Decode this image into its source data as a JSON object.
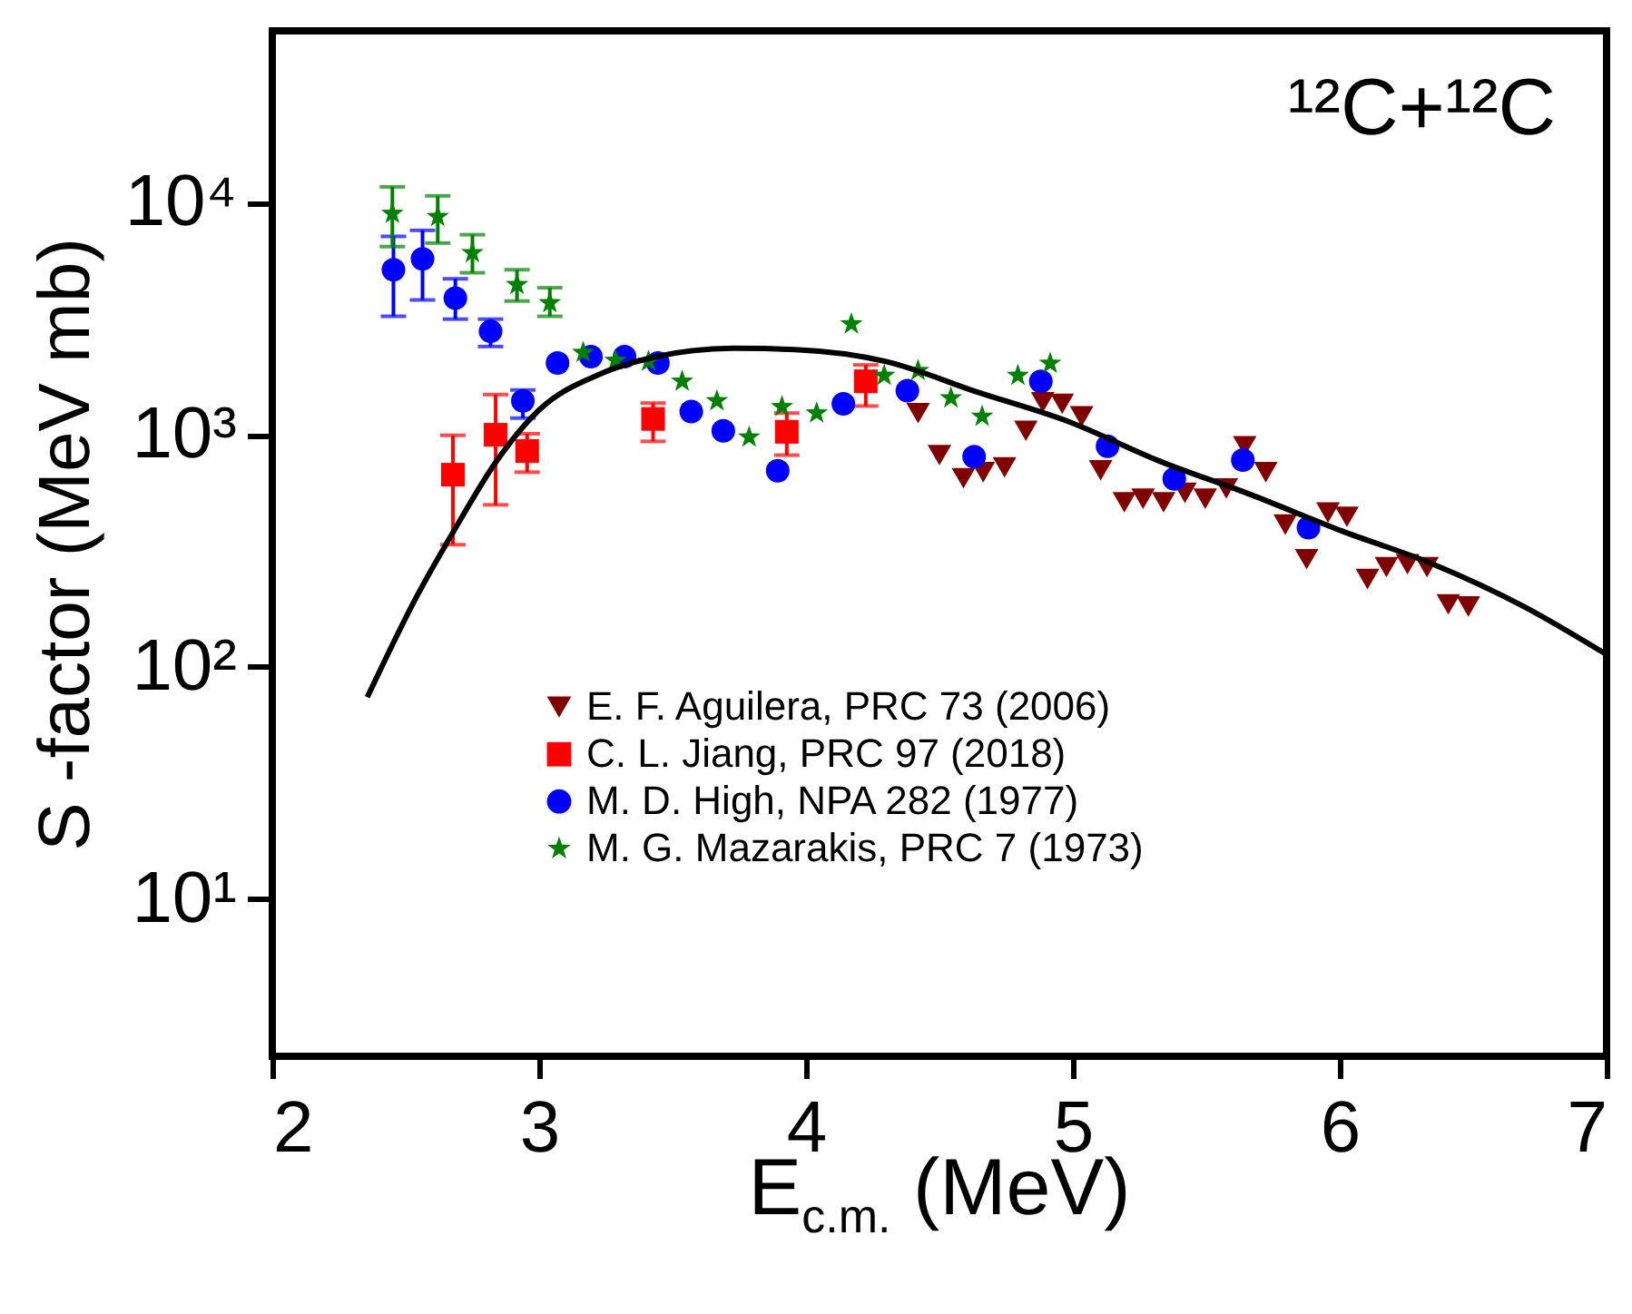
{
  "chart_data": {
    "type": "scatter",
    "xlabel": "E$_{c.m.}$ (MeV)",
    "ylabel": "S -factor (MeV mb)",
    "annotations": [
      "¹²C+¹²C"
    ],
    "log": "y",
    "xlim": [
      2,
      7
    ],
    "xticks": [
      2,
      3,
      4,
      5,
      6,
      7
    ],
    "ylim": [
      2.1,
      55000
    ],
    "yticks": [
      {
        "value": 10,
        "label": "10¹"
      },
      {
        "value": 100,
        "label": "10²"
      },
      {
        "value": 1000,
        "label": "10³"
      },
      {
        "value": 10000,
        "label": "10⁴"
      }
    ],
    "grid": false,
    "legend": "bottom",
    "series": [
      {
        "name": "E. F. Aguilera, PRC 73 (2006)",
        "color": "#800000",
        "marker": "triangle-down",
        "x": [
          4.42,
          4.5,
          4.59,
          4.664,
          4.744,
          4.824,
          4.887,
          4.96,
          5.033,
          5.104,
          5.193,
          5.263,
          5.34,
          5.42,
          5.496,
          5.575,
          5.644,
          5.723,
          5.796,
          5.876,
          5.956,
          6.027,
          6.104,
          6.175,
          6.254,
          6.327,
          6.407,
          6.482
        ],
        "values": [
          1240,
          817,
          650,
          690,
          724,
          1040,
          1380,
          1360,
          1200,
          703,
          512,
          530,
          512,
          562,
          530,
          587,
          893,
          690,
          410,
          291,
          462,
          443,
          239,
          269,
          277,
          269,
          186,
          182
        ]
      },
      {
        "name": "C. L. Jiang, PRC 97 (2018)",
        "color": "#ff0000",
        "marker": "square",
        "x": [
          2.677,
          2.837,
          2.955,
          3.427,
          3.928,
          4.224
        ],
        "values": [
          673,
          1000,
          851,
          1170,
          1030,
          1700
        ],
        "errors": [
          [
            336,
            995
          ],
          [
            499,
            1490
          ],
          [
            690,
            1010
          ],
          [
            937,
            1370
          ],
          [
            817,
            1240
          ],
          [
            1330,
            2000
          ]
        ]
      },
      {
        "name": "M. D. High, NPA 282 (1977)",
        "color": "#0000ff",
        "marker": "circle",
        "x": [
          2.454,
          2.563,
          2.686,
          2.818,
          2.939,
          3.069,
          3.194,
          3.32,
          3.445,
          3.57,
          3.69,
          3.894,
          4.14,
          4.38,
          4.63,
          4.88,
          5.13,
          5.38,
          5.637,
          5.883
        ],
        "values": [
          5140,
          5730,
          3880,
          2790,
          1400,
          2040,
          2170,
          2170,
          2040,
          1260,
          1040,
          700,
          1360,
          1550,
          805,
          1700,
          893,
          646,
          778,
          398
        ],
        "errors": [
          [
            3240,
            7160
          ],
          [
            3810,
            7600
          ],
          [
            3150,
            4700
          ],
          [
            2400,
            3150
          ],
          [
            1180,
            1560
          ],
          null,
          null,
          null,
          null,
          null,
          null,
          null,
          null,
          null,
          null,
          null,
          null,
          null,
          null,
          null
        ]
      },
      {
        "name": "M. G. Mazarakis, PRC 7 (1973)",
        "color": "#008000",
        "marker": "star",
        "x": [
          2.45,
          2.62,
          2.75,
          2.917,
          3.04,
          3.165,
          3.286,
          3.41,
          3.536,
          3.666,
          3.787,
          3.91,
          4.04,
          4.17,
          4.293,
          4.42,
          4.543,
          4.66,
          4.794,
          4.915
        ],
        "values": [
          8980,
          8700,
          6080,
          4430,
          3700,
          2260,
          2090,
          2070,
          1700,
          1400,
          977,
          1320,
          1240,
          3000,
          1800,
          1890,
          1440,
          1200,
          1800,
          2030
        ],
        "errors": [
          [
            6470,
            11700
          ],
          [
            6700,
            10700
          ],
          [
            4990,
            7280
          ],
          [
            3770,
            5140
          ],
          [
            3240,
            4300
          ],
          null,
          null,
          null,
          null,
          null,
          null,
          null,
          null,
          null,
          null,
          null,
          null,
          null,
          null,
          null
        ]
      },
      {
        "type": "line",
        "color": "#000000",
        "x": [
          2.356,
          2.545,
          2.68,
          2.84,
          3.0,
          3.23,
          3.457,
          3.73,
          3.958,
          4.3,
          4.64,
          4.983,
          5.325,
          5.667,
          6.008,
          6.35,
          6.69,
          7.0
        ],
        "values": [
          74,
          205,
          385,
          770,
          1280,
          1830,
          2190,
          2360,
          2330,
          2070,
          1530,
          1140,
          770,
          552,
          385,
          277,
          182,
          113
        ]
      }
    ]
  }
}
